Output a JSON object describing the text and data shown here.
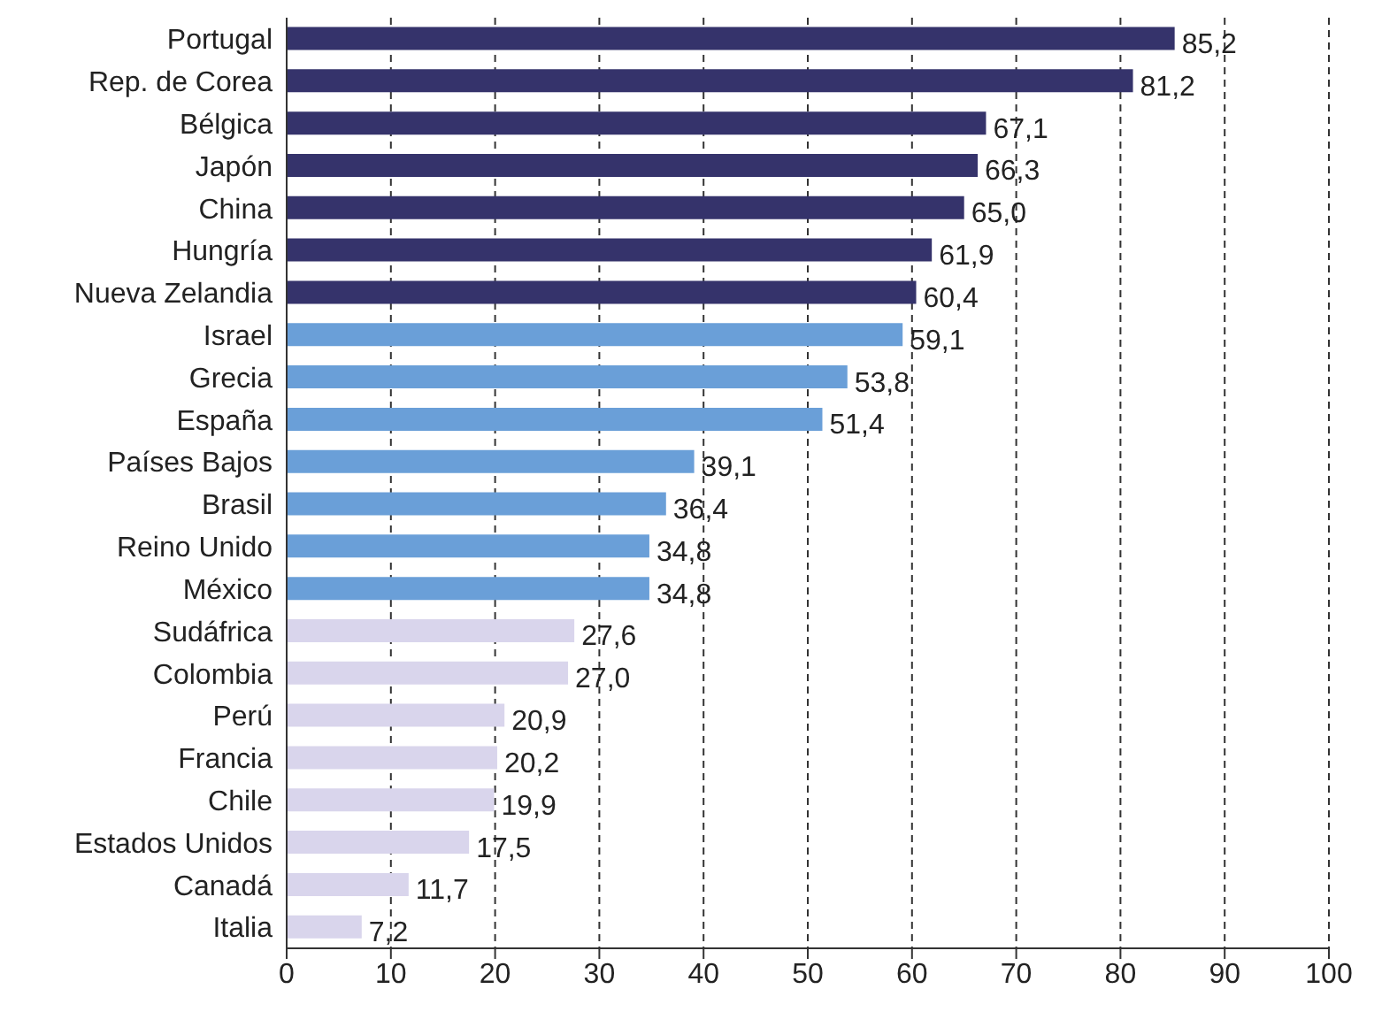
{
  "chart_data": {
    "type": "bar",
    "orientation": "horizontal",
    "categories": [
      "Portugal",
      "Rep. de Corea",
      "Bélgica",
      "Japón",
      "China",
      "Hungría",
      "Nueva Zelandia",
      "Israel",
      "Grecia",
      "España",
      "Países Bajos",
      "Brasil",
      "Reino Unido",
      "México",
      "Sudáfrica",
      "Colombia",
      "Perú",
      "Francia",
      "Chile",
      "Estados Unidos",
      "Canadá",
      "Italia"
    ],
    "values": [
      85.2,
      81.2,
      67.1,
      66.3,
      65.0,
      61.9,
      60.4,
      59.1,
      53.8,
      51.4,
      39.1,
      36.4,
      34.8,
      34.8,
      27.6,
      27.0,
      20.9,
      20.2,
      19.9,
      17.5,
      11.7,
      7.2
    ],
    "value_labels": [
      "85,2",
      "81,2",
      "67,1",
      "66,3",
      "65,0",
      "61,9",
      "60,4",
      "59,1",
      "53,8",
      "51,4",
      "39,1",
      "36,4",
      "34,8",
      "34,8",
      "27,6",
      "27,0",
      "20,9",
      "20,2",
      "19,9",
      "17,5",
      "11,7",
      "7,2"
    ],
    "colors": [
      "#35336b",
      "#35336b",
      "#35336b",
      "#35336b",
      "#35336b",
      "#35336b",
      "#35336b",
      "#6a9fd8",
      "#6a9fd8",
      "#6a9fd8",
      "#6a9fd8",
      "#6a9fd8",
      "#6a9fd8",
      "#6a9fd8",
      "#d9d5ec",
      "#d9d5ec",
      "#d9d5ec",
      "#d9d5ec",
      "#d9d5ec",
      "#d9d5ec",
      "#d9d5ec",
      "#d9d5ec"
    ],
    "xlim": [
      0,
      100
    ],
    "xticks": [
      0,
      10,
      20,
      30,
      40,
      50,
      60,
      70,
      80,
      90,
      100
    ],
    "grid": "x"
  }
}
